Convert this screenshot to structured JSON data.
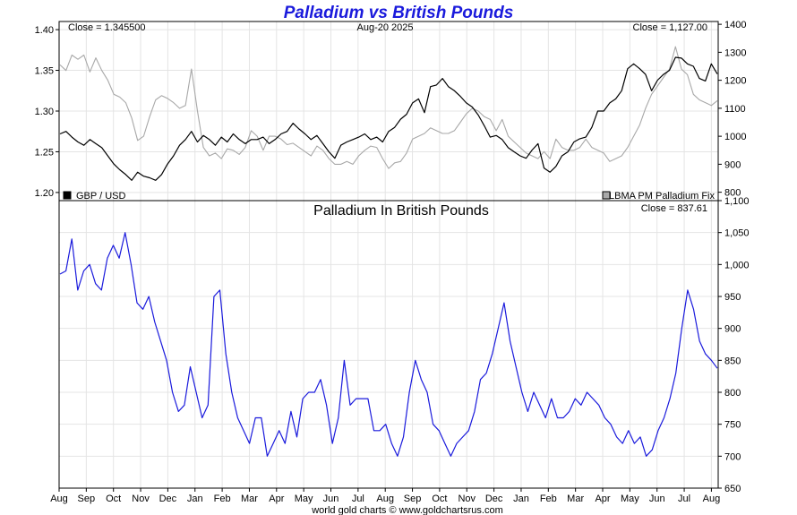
{
  "chart_data": [
    {
      "type": "line",
      "title": "Palladium vs British Pounds",
      "close_left": "Close = 1.345500",
      "close_right": "Close = 1,127.00",
      "date_label": "Aug-20  2025",
      "x_ticks": [
        "Aug",
        "Sep",
        "Oct",
        "Nov",
        "Dec",
        "Jan",
        "Feb",
        "Mar",
        "Apr",
        "May",
        "Jun",
        "Jul",
        "Aug",
        "Sep",
        "Oct",
        "Nov",
        "Dec",
        "Jan",
        "Feb",
        "Mar",
        "Apr",
        "May",
        "Jun",
        "Jul",
        "Aug"
      ],
      "y_left_ticks": [
        "1.40",
        "1.35",
        "1.30",
        "1.25",
        "1.20"
      ],
      "y_left_lim": [
        1.19,
        1.41
      ],
      "y_right_ticks": [
        "1400",
        "1300",
        "1200",
        "1100",
        "1000",
        "900",
        "800"
      ],
      "y_right_lim": [
        770,
        1410
      ],
      "series": [
        {
          "name": "GBP / USD",
          "axis": "left",
          "color": "#000000",
          "values": [
            1.272,
            1.275,
            1.268,
            1.262,
            1.258,
            1.265,
            1.26,
            1.255,
            1.245,
            1.235,
            1.228,
            1.222,
            1.215,
            1.225,
            1.22,
            1.218,
            1.215,
            1.222,
            1.235,
            1.245,
            1.258,
            1.265,
            1.275,
            1.262,
            1.27,
            1.265,
            1.258,
            1.268,
            1.262,
            1.272,
            1.265,
            1.26,
            1.265,
            1.265,
            1.268,
            1.26,
            1.265,
            1.272,
            1.275,
            1.285,
            1.278,
            1.272,
            1.265,
            1.27,
            1.26,
            1.25,
            1.242,
            1.258,
            1.262,
            1.265,
            1.268,
            1.272,
            1.265,
            1.268,
            1.262,
            1.275,
            1.28,
            1.29,
            1.296,
            1.31,
            1.315,
            1.298,
            1.33,
            1.332,
            1.34,
            1.33,
            1.325,
            1.318,
            1.31,
            1.305,
            1.295,
            1.282,
            1.268,
            1.27,
            1.265,
            1.255,
            1.25,
            1.245,
            1.242,
            1.252,
            1.26,
            1.23,
            1.225,
            1.232,
            1.245,
            1.25,
            1.262,
            1.266,
            1.268,
            1.28,
            1.3,
            1.3,
            1.31,
            1.315,
            1.325,
            1.352,
            1.358,
            1.352,
            1.345,
            1.325,
            1.338,
            1.345,
            1.35,
            1.366,
            1.365,
            1.358,
            1.355,
            1.34,
            1.337,
            1.358,
            1.3455
          ]
        },
        {
          "name": "LBMA PM Palladium Fix",
          "axis": "right",
          "color": "#a8a8a8",
          "values": [
            1255,
            1235,
            1290,
            1275,
            1290,
            1230,
            1280,
            1235,
            1200,
            1150,
            1140,
            1120,
            1065,
            985,
            1000,
            1070,
            1130,
            1145,
            1135,
            1120,
            1100,
            1110,
            1240,
            1090,
            960,
            930,
            940,
            920,
            955,
            950,
            935,
            960,
            1020,
            1000,
            950,
            1000,
            1000,
            990,
            970,
            975,
            960,
            945,
            930,
            965,
            950,
            920,
            900,
            900,
            910,
            900,
            930,
            950,
            965,
            960,
            920,
            885,
            905,
            910,
            940,
            990,
            1000,
            1010,
            1030,
            1020,
            1010,
            1010,
            1020,
            1050,
            1080,
            1100,
            1090,
            1070,
            1060,
            1020,
            1060,
            1000,
            980,
            960,
            940,
            930,
            920,
            945,
            920,
            990,
            960,
            950,
            950,
            960,
            990,
            960,
            950,
            940,
            910,
            920,
            930,
            960,
            1000,
            1040,
            1100,
            1150,
            1180,
            1210,
            1240,
            1320,
            1240,
            1220,
            1150,
            1130,
            1120,
            1110,
            1127
          ]
        }
      ],
      "legend": "bottom-left and bottom-right",
      "grid": true
    },
    {
      "type": "line",
      "title": "Palladium In British Pounds",
      "close_label": "Close = 837.61",
      "x_ticks": [
        "Aug",
        "Sep",
        "Oct",
        "Nov",
        "Dec",
        "Jan",
        "Feb",
        "Mar",
        "Apr",
        "May",
        "Jun",
        "Jul",
        "Aug",
        "Sep",
        "Oct",
        "Nov",
        "Dec",
        "Jan",
        "Feb",
        "Mar",
        "Apr",
        "May",
        "Jun",
        "Jul",
        "Aug"
      ],
      "y_ticks": [
        "1,100",
        "1,050",
        "1,000",
        "950",
        "900",
        "850",
        "800",
        "750",
        "700",
        "650"
      ],
      "ylim": [
        650,
        1100
      ],
      "series": [
        {
          "name": "Palladium In British Pounds",
          "color": "#1a1adc",
          "values": [
            985,
            990,
            1040,
            960,
            990,
            1000,
            970,
            960,
            1010,
            1030,
            1010,
            1050,
            1000,
            940,
            930,
            950,
            910,
            880,
            850,
            800,
            770,
            780,
            840,
            800,
            760,
            780,
            950,
            960,
            860,
            800,
            760,
            740,
            720,
            760,
            760,
            700,
            720,
            740,
            720,
            770,
            730,
            790,
            800,
            800,
            820,
            780,
            720,
            760,
            850,
            780,
            790,
            790,
            790,
            740,
            740,
            750,
            720,
            700,
            730,
            800,
            850,
            820,
            800,
            750,
            740,
            720,
            700,
            720,
            730,
            740,
            770,
            820,
            830,
            860,
            900,
            940,
            880,
            840,
            800,
            770,
            800,
            780,
            760,
            790,
            760,
            760,
            770,
            790,
            780,
            800,
            790,
            780,
            760,
            750,
            730,
            720,
            740,
            720,
            730,
            700,
            710,
            740,
            760,
            790,
            830,
            900,
            960,
            930,
            880,
            860,
            850,
            837.61
          ]
        }
      ],
      "grid": true
    }
  ],
  "footer": "world gold charts © www.goldchartsrus.com"
}
